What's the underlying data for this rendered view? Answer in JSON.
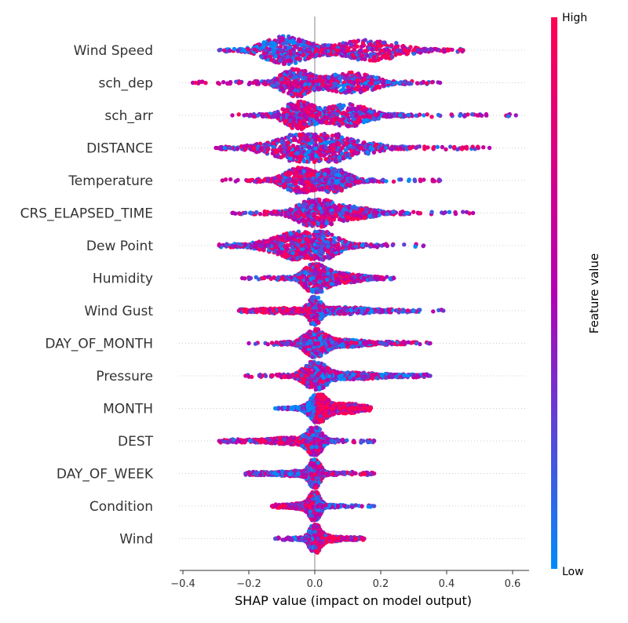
{
  "chart_data": {
    "type": "scatter",
    "subtype": "shap-beeswarm",
    "xlabel": "SHAP value (impact on model output)",
    "ylabel": "",
    "xlim": [
      -0.41,
      0.65
    ],
    "x_ticks": [
      -0.4,
      -0.2,
      0.0,
      0.2,
      0.4,
      0.6
    ],
    "x_tick_labels": [
      "−0.4",
      "−0.2",
      "0.0",
      "0.2",
      "0.4",
      "0.6"
    ],
    "colorbar": {
      "label": "Feature value",
      "high_label": "High",
      "low_label": "Low",
      "high_color": "#ff0052",
      "mid_color": "#b400b4",
      "low_color": "#008bfb"
    },
    "zero_line_color": "#999999",
    "features": [
      {
        "name": "Wind Speed",
        "min": -0.29,
        "max": 0.45,
        "spread": 0.34,
        "bias": 0.25,
        "modes": [
          {
            "c": -0.09,
            "w": 0.06,
            "h": 1.0
          },
          {
            "c": 0.17,
            "w": 0.09,
            "h": 0.75
          }
        ]
      },
      {
        "name": "sch_dep",
        "min": -0.37,
        "max": 0.38,
        "spread": 0.28,
        "bias": -0.05,
        "modes": [
          {
            "c": -0.06,
            "w": 0.04,
            "h": 1.0
          },
          {
            "c": 0.11,
            "w": 0.07,
            "h": 0.75
          }
        ]
      },
      {
        "name": "sch_arr",
        "min": -0.25,
        "max": 0.61,
        "spread": 0.28,
        "bias": -0.1,
        "modes": [
          {
            "c": -0.05,
            "w": 0.04,
            "h": 1.0
          },
          {
            "c": 0.1,
            "w": 0.06,
            "h": 0.8
          }
        ]
      },
      {
        "name": "DISTANCE",
        "min": -0.3,
        "max": 0.53,
        "spread": 0.38,
        "bias": 0.0,
        "modes": [
          {
            "c": 0.0,
            "w": 0.05,
            "h": 1.0
          },
          {
            "c": -0.08,
            "w": 0.08,
            "h": 0.6
          },
          {
            "c": 0.1,
            "w": 0.08,
            "h": 0.55
          }
        ]
      },
      {
        "name": "Temperature",
        "min": -0.28,
        "max": 0.38,
        "spread": 0.25,
        "bias": -0.2,
        "modes": [
          {
            "c": -0.05,
            "w": 0.04,
            "h": 0.9
          },
          {
            "c": 0.06,
            "w": 0.04,
            "h": 0.85
          }
        ]
      },
      {
        "name": "CRS_ELAPSED_TIME",
        "min": -0.25,
        "max": 0.48,
        "spread": 0.25,
        "bias": 0.0,
        "modes": [
          {
            "c": 0.0,
            "w": 0.05,
            "h": 1.0
          },
          {
            "c": 0.12,
            "w": 0.06,
            "h": 0.4
          }
        ]
      },
      {
        "name": "Dew Point",
        "min": -0.29,
        "max": 0.33,
        "spread": 0.33,
        "bias": -0.1,
        "modes": [
          {
            "c": 0.0,
            "w": 0.06,
            "h": 1.0
          },
          {
            "c": -0.08,
            "w": 0.08,
            "h": 0.5
          }
        ]
      },
      {
        "name": "Humidity",
        "min": -0.22,
        "max": 0.24,
        "spread": 0.2,
        "bias": 0.0,
        "modes": [
          {
            "c": 0.0,
            "w": 0.03,
            "h": 1.0
          },
          {
            "c": 0.08,
            "w": 0.06,
            "h": 0.35
          }
        ]
      },
      {
        "name": "Wind Gust",
        "min": -0.23,
        "max": 0.39,
        "spread": 0.14,
        "bias": -0.2,
        "modes": [
          {
            "c": 0.0,
            "w": 0.015,
            "h": 1.0
          },
          {
            "c": 0.1,
            "w": 0.07,
            "h": 0.25
          },
          {
            "c": -0.1,
            "w": 0.07,
            "h": 0.2
          }
        ]
      },
      {
        "name": "DAY_OF_MONTH",
        "min": -0.2,
        "max": 0.35,
        "spread": 0.18,
        "bias": 0.0,
        "modes": [
          {
            "c": 0.0,
            "w": 0.03,
            "h": 1.0
          },
          {
            "c": 0.1,
            "w": 0.06,
            "h": 0.25
          }
        ]
      },
      {
        "name": "Pressure",
        "min": -0.21,
        "max": 0.35,
        "spread": 0.18,
        "bias": -0.2,
        "modes": [
          {
            "c": 0.0,
            "w": 0.03,
            "h": 1.0
          },
          {
            "c": 0.12,
            "w": 0.09,
            "h": 0.25
          }
        ]
      },
      {
        "name": "MONTH",
        "min": -0.12,
        "max": 0.17,
        "spread": 0.17,
        "bias": 0.55,
        "modes": [
          {
            "c": 0.01,
            "w": 0.025,
            "h": 1.0
          },
          {
            "c": 0.1,
            "w": 0.05,
            "h": 0.35
          }
        ]
      },
      {
        "name": "DEST",
        "min": -0.29,
        "max": 0.18,
        "spread": 0.17,
        "bias": -0.1,
        "modes": [
          {
            "c": 0.0,
            "w": 0.02,
            "h": 1.0
          },
          {
            "c": -0.08,
            "w": 0.06,
            "h": 0.25
          }
        ]
      },
      {
        "name": "DAY_OF_WEEK",
        "min": -0.21,
        "max": 0.18,
        "spread": 0.13,
        "bias": 0.2,
        "modes": [
          {
            "c": 0.0,
            "w": 0.015,
            "h": 1.0
          },
          {
            "c": -0.06,
            "w": 0.06,
            "h": 0.2
          }
        ]
      },
      {
        "name": "Condition",
        "min": -0.13,
        "max": 0.18,
        "spread": 0.12,
        "bias": -0.3,
        "modes": [
          {
            "c": 0.0,
            "w": 0.015,
            "h": 1.0
          },
          {
            "c": -0.04,
            "w": 0.04,
            "h": 0.2
          }
        ]
      },
      {
        "name": "Wind",
        "min": -0.12,
        "max": 0.15,
        "spread": 0.11,
        "bias": 0.3,
        "modes": [
          {
            "c": 0.0,
            "w": 0.015,
            "h": 1.0
          },
          {
            "c": 0.04,
            "w": 0.04,
            "h": 0.22
          }
        ]
      }
    ]
  }
}
